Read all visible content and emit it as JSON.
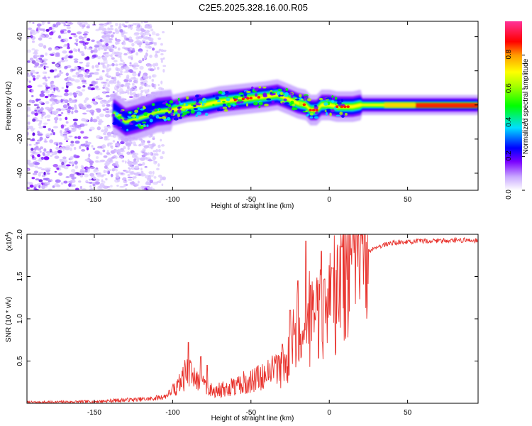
{
  "title": "C2E5.2025.328.16.00.R05",
  "chart_data": [
    {
      "type": "heatmap",
      "xlabel": "Height of straight line (km)",
      "ylabel": "Frequency (Hz)",
      "xlim": [
        -193,
        95
      ],
      "ylim": [
        -50,
        49
      ],
      "xticks": [
        -150,
        -100,
        -50,
        0,
        50
      ],
      "yticks": [
        -40,
        -20,
        0,
        20,
        40
      ],
      "ridge": {
        "description": "Peak frequency ridge (x in km, y in Hz)",
        "x": [
          -137,
          -130,
          -122,
          -115,
          -110,
          -100,
          -90,
          -80,
          -70,
          -60,
          -50,
          -40,
          -33,
          -25,
          -20,
          -15,
          -12,
          -8,
          -5,
          0,
          5,
          10,
          15,
          20,
          30,
          50,
          70,
          95
        ],
        "y": [
          -5,
          -10,
          -8,
          -6,
          -4,
          -3,
          -1,
          0,
          2,
          3,
          4,
          5,
          6,
          3,
          1,
          0,
          -3,
          -3,
          0,
          0,
          -1,
          -1,
          -1,
          0,
          0,
          0,
          0,
          0
        ]
      },
      "colorbar": {
        "label": "Normalized spectral amplitude",
        "range": [
          0,
          1
        ],
        "ticks": [
          "0.0",
          "0.2",
          "0.4",
          "0.6",
          "0.8"
        ],
        "tick_values": [
          0.0,
          0.2,
          0.4,
          0.6,
          0.8
        ]
      }
    },
    {
      "type": "line",
      "xlabel": "Height of straight line (km)",
      "ylabel": "SNR (10 * v/v)",
      "scale_label": "(x10",
      "scale_exp": "4",
      "scale_close": ")",
      "xlim": [
        -193,
        95
      ],
      "ylim": [
        0,
        2.0
      ],
      "xticks": [
        -150,
        -100,
        -50,
        0,
        50
      ],
      "yticks": [
        0.5,
        1.0,
        1.5,
        2.0
      ],
      "ytick_labels": [
        "0.5",
        "1.0",
        "1.5",
        "2.0"
      ],
      "series": [
        {
          "name": "SNR",
          "color": "#e8302a",
          "envelope": {
            "x": [
              -193,
              -150,
              -130,
              -115,
              -105,
              -100,
              -95,
              -90,
              -85,
              -80,
              -75,
              -70,
              -60,
              -50,
              -40,
              -30,
              -25,
              -20,
              -15,
              -10,
              -5,
              0,
              5,
              10,
              15,
              20,
              25,
              30,
              40,
              60,
              80,
              95
            ],
            "y": [
              0.01,
              0.02,
              0.04,
              0.05,
              0.08,
              0.15,
              0.25,
              0.35,
              0.3,
              0.2,
              0.15,
              0.15,
              0.2,
              0.25,
              0.35,
              0.4,
              0.55,
              0.8,
              0.9,
              0.95,
              1.05,
              1.15,
              1.2,
              1.45,
              1.6,
              1.7,
              1.8,
              1.85,
              1.9,
              1.92,
              1.93,
              1.93
            ]
          },
          "peaks": {
            "x": [
              -90,
              -82,
              -78,
              -30,
              -25,
              -20,
              -15,
              -12,
              -5,
              2,
              8,
              15
            ],
            "y": [
              0.72,
              0.55,
              0.45,
              0.7,
              1.1,
              1.45,
              1.92,
              1.4,
              1.8,
              1.6,
              1.85,
              2.0
            ]
          }
        }
      ]
    }
  ]
}
